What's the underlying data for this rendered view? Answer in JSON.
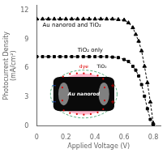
{
  "chart_data": {
    "type": "line",
    "xlabel": "Applied Voltage (V)",
    "ylabel": "Photocurrent Density\n(mA/cm²)",
    "x": [
      0.0,
      0.04,
      0.08,
      0.12,
      0.16,
      0.2,
      0.24,
      0.28,
      0.32,
      0.36,
      0.4,
      0.44,
      0.48,
      0.52,
      0.56,
      0.6,
      0.63,
      0.66,
      0.68,
      0.7,
      0.72,
      0.74,
      0.76,
      0.78,
      0.8
    ],
    "series": [
      {
        "name": "Au nanorod and TiO₂",
        "color": "black",
        "marker": "triangle",
        "line_style": "dashed",
        "values": [
          11.1,
          11.1,
          11.1,
          11.1,
          11.1,
          11.1,
          11.1,
          11.1,
          11.1,
          11.1,
          11.1,
          11.1,
          11.1,
          11.1,
          11.05,
          11.0,
          10.7,
          10.2,
          9.5,
          8.8,
          7.8,
          6.2,
          4.5,
          2.5,
          0.3
        ]
      },
      {
        "name": "TiO₂ only",
        "color": "black",
        "marker": "square",
        "line_style": "dashed",
        "values": [
          7.2,
          7.2,
          7.2,
          7.2,
          7.2,
          7.2,
          7.2,
          7.2,
          7.2,
          7.2,
          7.2,
          7.2,
          7.2,
          7.15,
          7.1,
          6.9,
          6.7,
          6.2,
          5.8,
          5.2,
          4.3,
          3.1,
          1.8,
          0.7,
          0.05
        ]
      }
    ],
    "xlim": [
      0.0,
      0.85
    ],
    "ylim": [
      0.0,
      12.5
    ],
    "xticks": [
      0.0,
      0.2,
      0.4,
      0.6,
      0.8
    ],
    "yticks": [
      0,
      3,
      6,
      9,
      12
    ],
    "grid": false,
    "annotations": [
      "Au nanorod",
      "dye",
      "TiO₂",
      "+",
      "+",
      "−",
      "−"
    ]
  }
}
